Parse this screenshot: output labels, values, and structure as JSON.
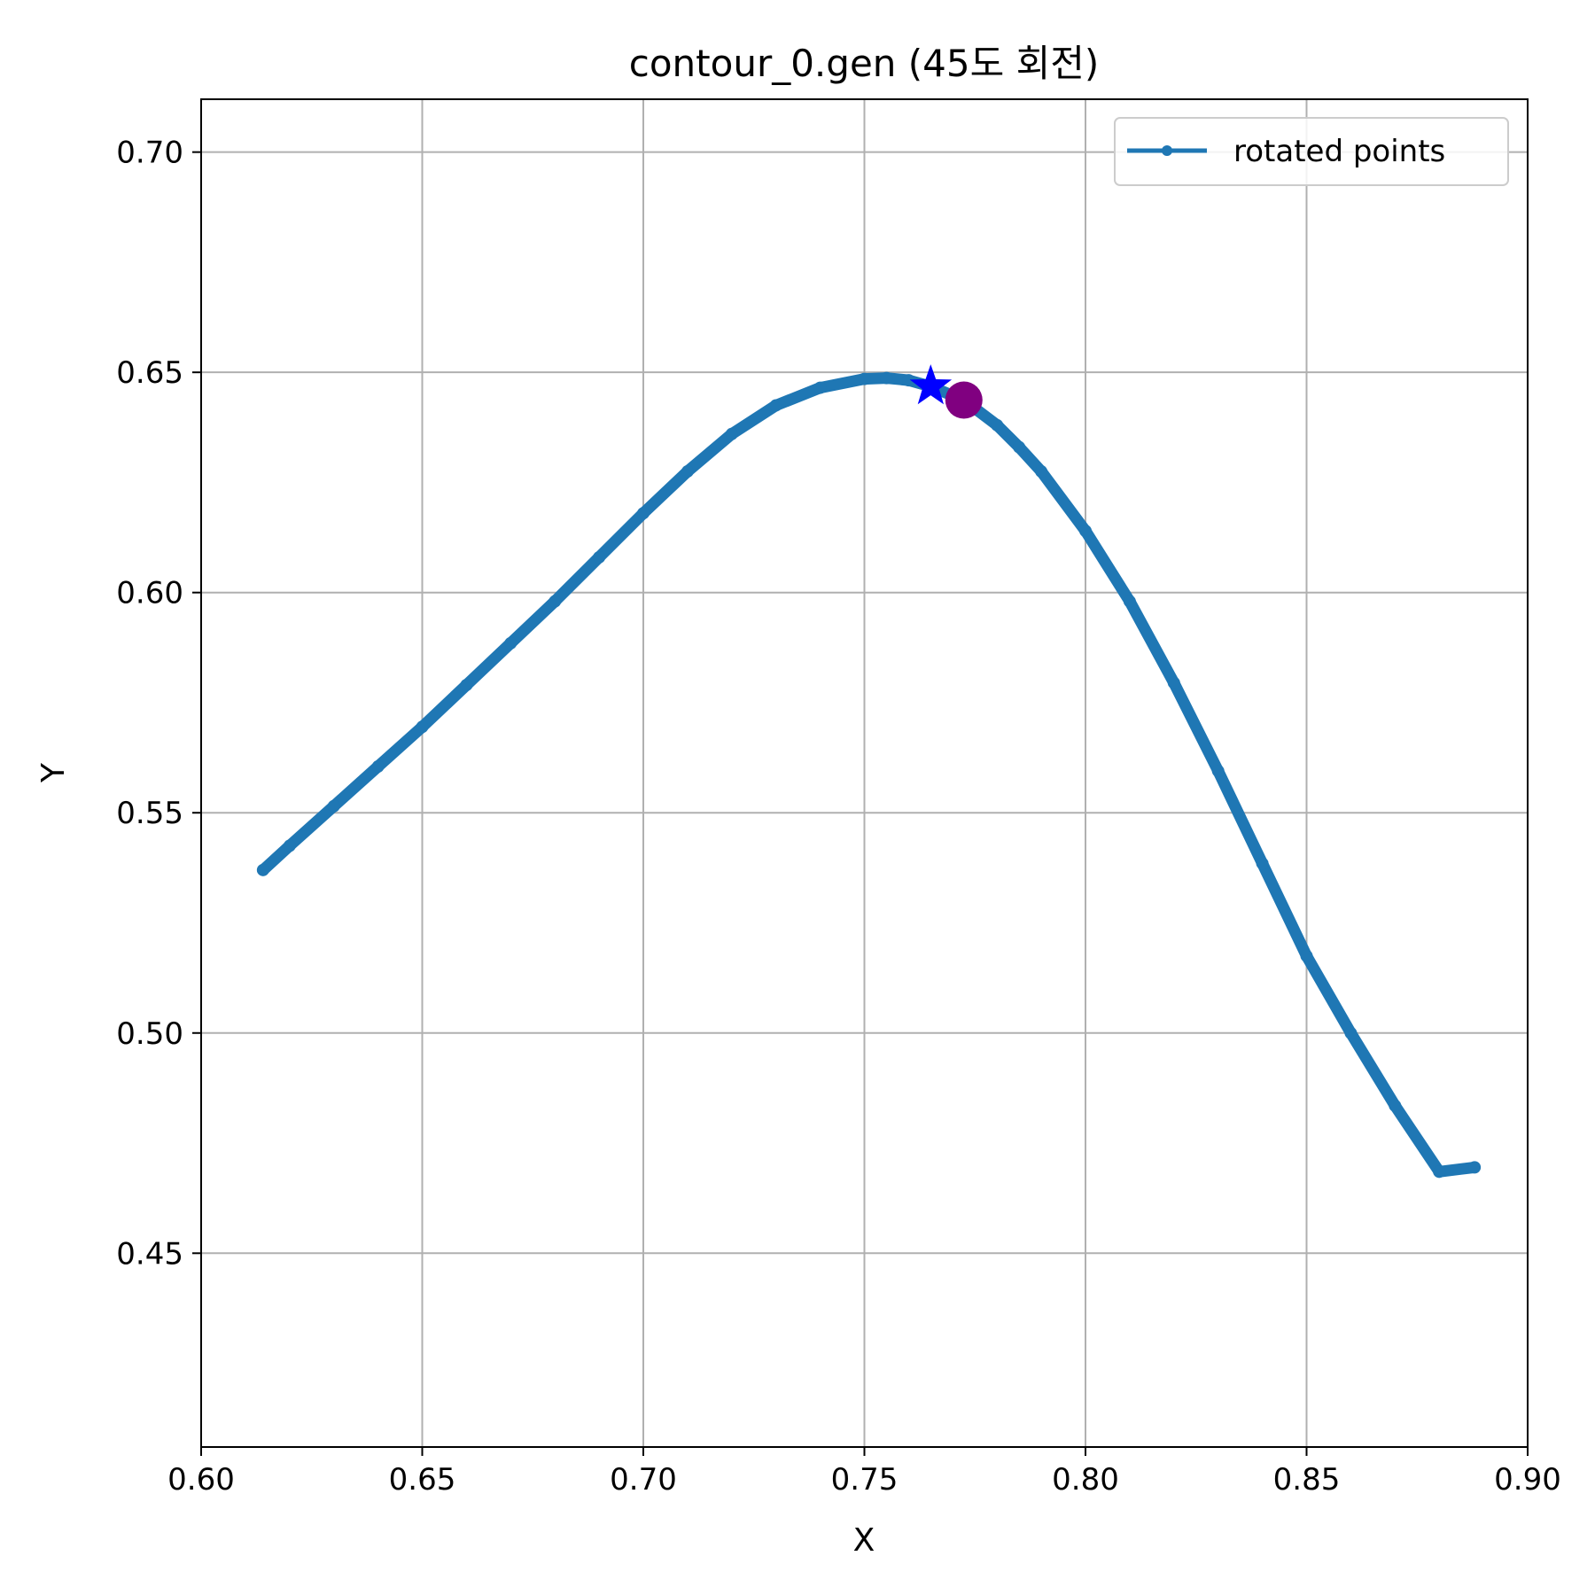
{
  "chart_data": {
    "type": "line",
    "title": "contour_0.gen (45도 회전)",
    "xlabel": "X",
    "ylabel": "Y",
    "xlim": [
      0.6,
      0.9
    ],
    "ylim": [
      0.406,
      0.712
    ],
    "xticks": [
      "0.60",
      "0.65",
      "0.70",
      "0.75",
      "0.80",
      "0.85",
      "0.90"
    ],
    "yticks": [
      "0.45",
      "0.50",
      "0.55",
      "0.60",
      "0.65",
      "0.70"
    ],
    "grid": true,
    "legend_position": "top-right",
    "series": [
      {
        "name": "rotated points",
        "color": "#1f77b4",
        "marker": "dot",
        "x": [
          0.614,
          0.62,
          0.63,
          0.64,
          0.65,
          0.66,
          0.67,
          0.68,
          0.69,
          0.7,
          0.71,
          0.72,
          0.73,
          0.74,
          0.75,
          0.755,
          0.76,
          0.765,
          0.77,
          0.775,
          0.78,
          0.785,
          0.79,
          0.8,
          0.81,
          0.82,
          0.83,
          0.84,
          0.85,
          0.86,
          0.87,
          0.88,
          0.888
        ],
        "y": [
          0.537,
          0.5425,
          0.5515,
          0.5605,
          0.5695,
          0.579,
          0.5885,
          0.598,
          0.608,
          0.618,
          0.6275,
          0.636,
          0.6425,
          0.6465,
          0.6485,
          0.6487,
          0.6482,
          0.6468,
          0.6447,
          0.6418,
          0.638,
          0.633,
          0.6275,
          0.614,
          0.598,
          0.5795,
          0.5595,
          0.5385,
          0.5175,
          0.5,
          0.4835,
          0.4685,
          0.4695
        ]
      }
    ],
    "markers": [
      {
        "shape": "star",
        "color": "#0000ff",
        "x": 0.765,
        "y": 0.6468
      },
      {
        "shape": "circle",
        "color": "#800080",
        "x": 0.7725,
        "y": 0.6437
      }
    ]
  }
}
